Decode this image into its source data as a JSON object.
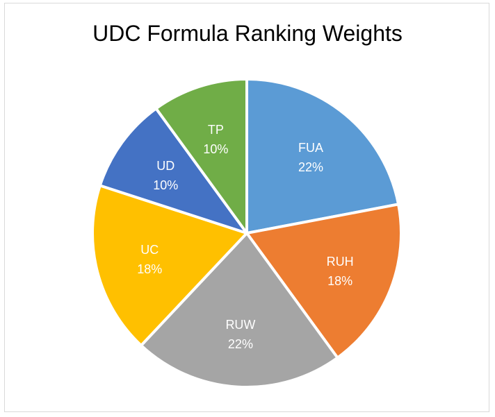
{
  "chart_data": {
    "type": "pie",
    "title": "UDC Formula Ranking Weights",
    "slices": [
      {
        "label": "FUA",
        "value": 22,
        "display": "22%",
        "color": "#5b9bd5"
      },
      {
        "label": "RUH",
        "value": 18,
        "display": "18%",
        "color": "#ed7d31"
      },
      {
        "label": "RUW",
        "value": 22,
        "display": "22%",
        "color": "#a5a5a5"
      },
      {
        "label": "UC",
        "value": 18,
        "display": "18%",
        "color": "#ffc000"
      },
      {
        "label": "UD",
        "value": 10,
        "display": "10%",
        "color": "#4472c4"
      },
      {
        "label": "TP",
        "value": 10,
        "display": "10%",
        "color": "#70ad47"
      }
    ],
    "legend": "none"
  }
}
